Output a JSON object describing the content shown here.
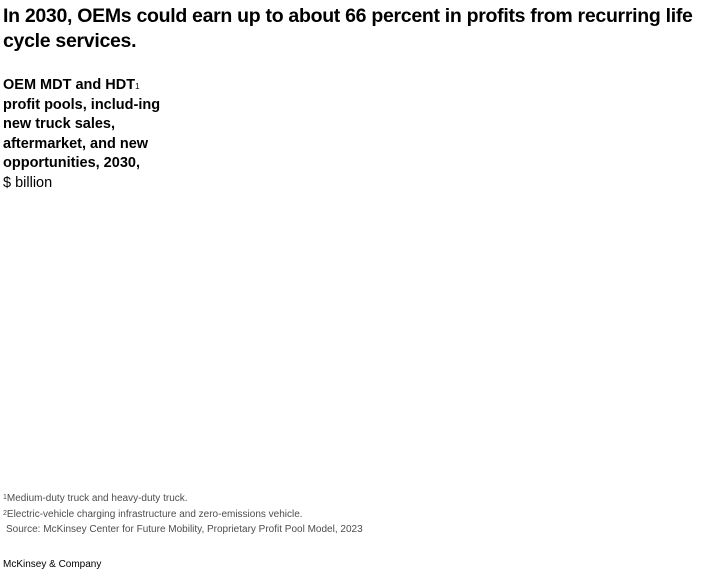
{
  "header": {
    "title": "In 2030, OEMs could earn up to about 66 percent in profits from recurring life cycle services."
  },
  "subtitle": {
    "bold_part": "OEM MDT and HDT",
    "superscript": "1",
    "bold_continued": " profit pools, includ-ing new truck sales, aftermarket, and new opportunities, 2030,",
    "unit": "$ billion"
  },
  "footnotes": [
    {
      "marker": "1",
      "text": "Medium-duty truck and heavy-duty truck."
    },
    {
      "marker": "2",
      "text": "Electric-vehicle charging infrastructure and zero-emissions vehicle."
    }
  ],
  "source": "Source: McKinsey Center for Future Mobility, Proprietary Profit Pool Model, 2023",
  "brand": "McKinsey & Company",
  "chart_data": {
    "type": "bar",
    "title": "In 2030, OEMs could earn up to about 66 percent in profits from recurring life cycle services.",
    "subtitle": "OEM MDT and HDT profit pools, including new truck sales, aftermarket, and new opportunities, 2030, $ billion",
    "unit": "$ billion",
    "categories": [],
    "series": [],
    "xlabel": "",
    "ylabel": "$ billion",
    "notes": "Chart body not rendered in screenshot; only title, subtitle, footnotes, and source are visible."
  }
}
